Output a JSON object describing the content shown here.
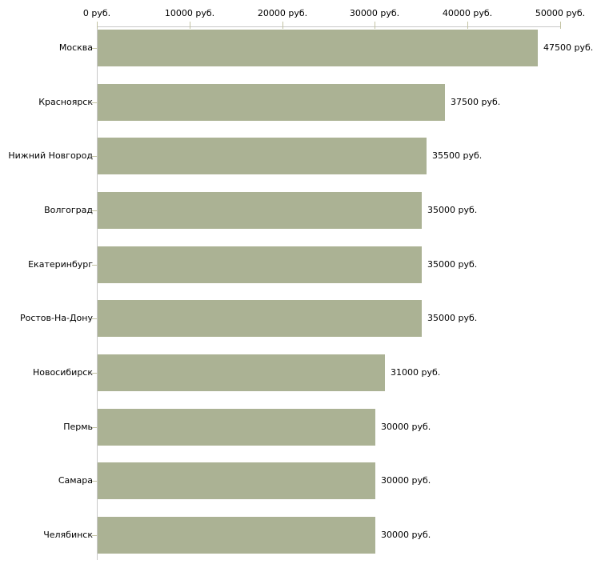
{
  "chart_data": {
    "type": "bar",
    "orientation": "horizontal",
    "title": "",
    "xlabel": "",
    "ylabel": "",
    "unit": "руб.",
    "categories": [
      "Москва",
      "Красноярск",
      "Нижний Новгород",
      "Волгоград",
      "Екатеринбург",
      "Ростов-На-Дону",
      "Новосибирск",
      "Пермь",
      "Самара",
      "Челябинск"
    ],
    "values": [
      47500,
      37500,
      35500,
      35000,
      35000,
      35000,
      31000,
      30000,
      30000,
      30000
    ],
    "value_labels": [
      "47500 руб.",
      "37500 руб.",
      "35500 руб.",
      "35000 руб.",
      "35000 руб.",
      "35000 руб.",
      "31000 руб.",
      "30000 руб.",
      "30000 руб.",
      "30000 руб."
    ],
    "x_ticks": [
      {
        "value": 0,
        "label": "0 руб."
      },
      {
        "value": 10000,
        "label": "10000 руб."
      },
      {
        "value": 20000,
        "label": "20000 руб."
      },
      {
        "value": 30000,
        "label": "30000 руб."
      },
      {
        "value": 40000,
        "label": "40000 руб."
      },
      {
        "value": 50000,
        "label": "50000 руб."
      }
    ],
    "xlim": [
      0,
      50000
    ],
    "grid": false,
    "legend_position": "none",
    "colors": {
      "bar": "#abb294",
      "axis": "#c9c9c9",
      "tick": "#c2c2a2",
      "text": "#000000",
      "background": "#ffffff"
    }
  }
}
